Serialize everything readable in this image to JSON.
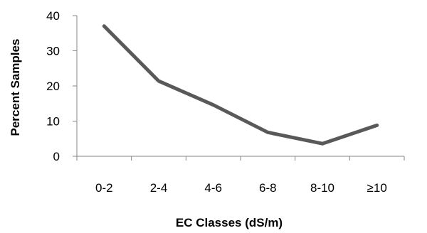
{
  "chart_data": {
    "type": "line",
    "title": "",
    "xlabel": "EC Classes (dS/m)",
    "ylabel": "Percent Samples",
    "categories": [
      "0-2",
      "2-4",
      "4-6",
      "6-8",
      "8-10",
      "≥10"
    ],
    "series": [
      {
        "values": [
          37,
          21.4,
          14.6,
          6.8,
          3.6,
          8.8
        ],
        "color": "#595959"
      }
    ],
    "ylim": [
      0,
      40
    ],
    "yticks": [
      0,
      10,
      20,
      30,
      40
    ],
    "grid": false,
    "legend": "none",
    "axis_color": "#868686"
  }
}
